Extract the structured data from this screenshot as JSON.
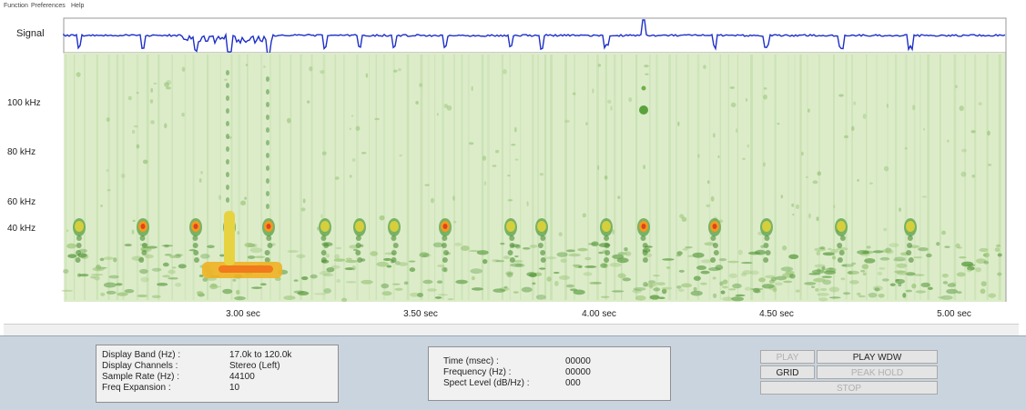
{
  "menu": [
    "Function",
    "Preferences",
    "Help"
  ],
  "signal_label": "Signal",
  "frequency_labels": [
    "100 kHz",
    "80 kHz",
    "60 kHz",
    "40 kHz"
  ],
  "time_labels": [
    "3.00 sec",
    "3.50 sec",
    "4.00 sec",
    "4.50 sec",
    "5.00 sec"
  ],
  "info": [
    {
      "label": "Display Band (Hz) :",
      "value": "17.0k to 120.0k"
    },
    {
      "label": "Display Channels :",
      "value": "Stereo (Left)"
    },
    {
      "label": "Sample Rate (Hz) :",
      "value": "44100"
    },
    {
      "label": "Freq Expansion :",
      "value": "10"
    }
  ],
  "readout": [
    {
      "label": "Time (msec) :",
      "value": "00000"
    },
    {
      "label": "Frequency (Hz) :",
      "value": "00000"
    },
    {
      "label": "Spect Level (dB/Hz) :",
      "value": "000"
    }
  ],
  "buttons": [
    "PLAY",
    "PLAY WDW",
    "GRID",
    "PEAK HOLD",
    "STOP"
  ]
}
